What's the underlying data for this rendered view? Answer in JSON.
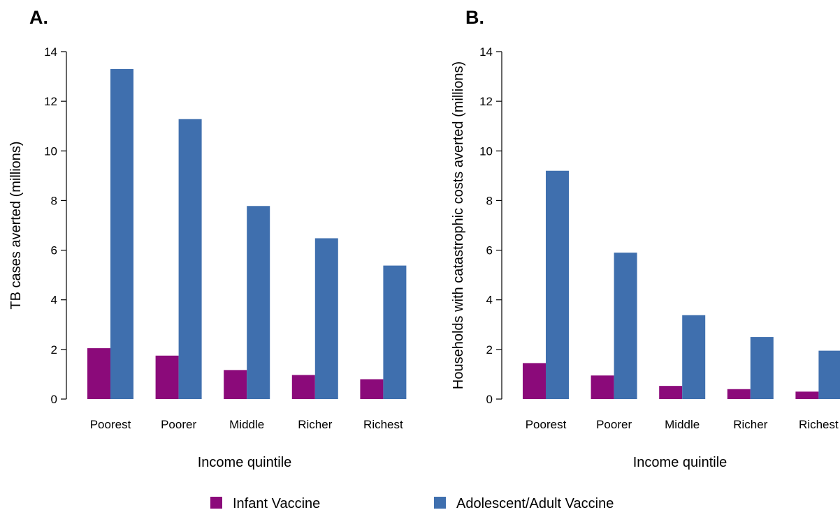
{
  "colors": {
    "infant": "#8B0A7A",
    "adult": "#3F6FAE"
  },
  "legend": {
    "infant_label": "Infant Vaccine",
    "adult_label": "Adolescent/Adult Vaccine"
  },
  "chart_data": [
    {
      "type": "bar",
      "panel_label": "A.",
      "categories": [
        "Poorest",
        "Poorer",
        "Middle",
        "Richer",
        "Richest"
      ],
      "series": [
        {
          "name": "Infant Vaccine",
          "values": [
            2.05,
            1.75,
            1.17,
            0.97,
            0.8
          ]
        },
        {
          "name": "Adolescent/Adult Vaccine",
          "values": [
            13.3,
            11.28,
            7.78,
            6.48,
            5.38
          ]
        }
      ],
      "xlabel": "Income quintile",
      "ylabel": "TB cases averted (millions)",
      "ylim": [
        0,
        14
      ],
      "yticks": [
        "0",
        "2",
        "4",
        "6",
        "8",
        "10",
        "12",
        "14"
      ],
      "grid": false,
      "legend_position": "bottom"
    },
    {
      "type": "bar",
      "panel_label": "B.",
      "categories": [
        "Poorest",
        "Poorer",
        "Middle",
        "Richer",
        "Richest"
      ],
      "series": [
        {
          "name": "Infant Vaccine",
          "values": [
            1.45,
            0.95,
            0.53,
            0.4,
            0.3
          ]
        },
        {
          "name": "Adolescent/Adult Vaccine",
          "values": [
            9.2,
            5.9,
            3.38,
            2.5,
            1.95
          ]
        }
      ],
      "xlabel": "Income quintile",
      "ylabel": "Households with catastrophic costs averted (millions)",
      "ylim": [
        0,
        14
      ],
      "yticks": [
        "0",
        "2",
        "4",
        "6",
        "8",
        "10",
        "12",
        "14"
      ],
      "grid": false,
      "legend_position": "bottom"
    }
  ]
}
